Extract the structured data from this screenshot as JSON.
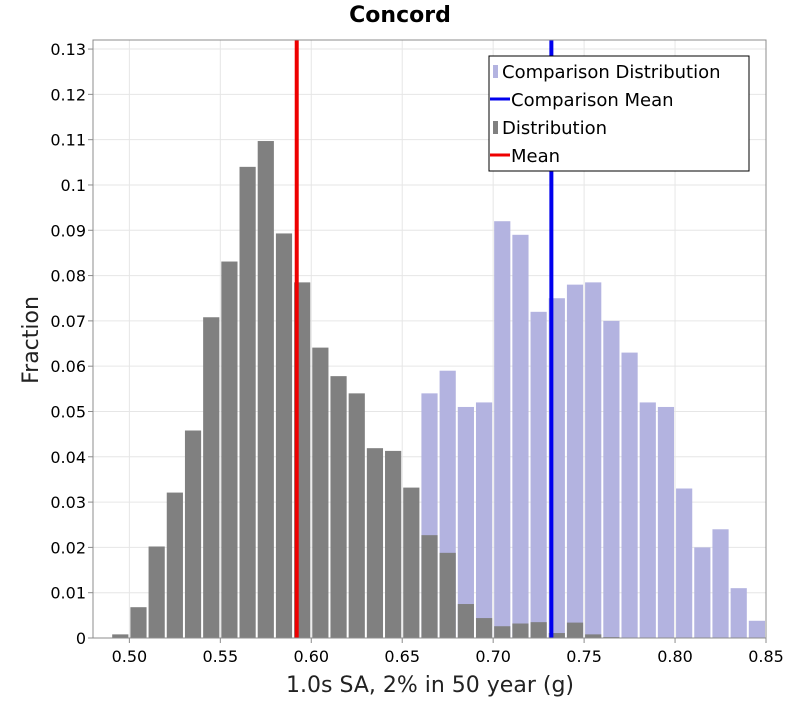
{
  "chart_data": {
    "type": "bar",
    "title": "Concord",
    "xlabel": "1.0s SA, 2% in 50 year (g)",
    "ylabel": "Fraction",
    "xlim": [
      0.48,
      0.85
    ],
    "ylim": [
      0,
      0.132
    ],
    "x_ticks": [
      "0.50",
      "0.55",
      "0.60",
      "0.65",
      "0.70",
      "0.75",
      "0.80",
      "0.85"
    ],
    "x_tick_values": [
      0.5,
      0.55,
      0.6,
      0.65,
      0.7,
      0.75,
      0.8,
      0.85
    ],
    "y_ticks": [
      "0",
      "0.01",
      "0.02",
      "0.03",
      "0.04",
      "0.05",
      "0.06",
      "0.07",
      "0.08",
      "0.09",
      "0.1",
      "0.11",
      "0.12",
      "0.13"
    ],
    "y_tick_values": [
      0,
      0.01,
      0.02,
      0.03,
      0.04,
      0.05,
      0.06,
      0.07,
      0.08,
      0.09,
      0.1,
      0.11,
      0.12,
      0.13
    ],
    "grid": true,
    "legend_position": "top-right",
    "bin_width": 0.01,
    "series": [
      {
        "name": "Comparison Distribution",
        "kind": "histogram",
        "color": "#b3b3e0",
        "x": [
          0.665,
          0.675,
          0.685,
          0.695,
          0.705,
          0.715,
          0.725,
          0.735,
          0.745,
          0.755,
          0.765,
          0.775,
          0.785,
          0.795,
          0.805,
          0.815,
          0.825,
          0.835,
          0.845
        ],
        "values": [
          0.054,
          0.059,
          0.051,
          0.052,
          0.092,
          0.089,
          0.072,
          0.075,
          0.078,
          0.0785,
          0.07,
          0.063,
          0.052,
          0.051,
          0.033,
          0.02,
          0.024,
          0.011,
          0.0038
        ]
      },
      {
        "name": "Distribution",
        "kind": "histogram",
        "color": "#808080",
        "x": [
          0.495,
          0.505,
          0.515,
          0.525,
          0.535,
          0.545,
          0.555,
          0.565,
          0.575,
          0.585,
          0.595,
          0.605,
          0.615,
          0.625,
          0.635,
          0.645,
          0.655,
          0.665,
          0.675,
          0.685,
          0.695,
          0.705,
          0.715,
          0.725,
          0.735,
          0.745,
          0.755,
          0.765,
          0.775
        ],
        "values": [
          0.0008,
          0.0068,
          0.0202,
          0.0321,
          0.0458,
          0.0708,
          0.0831,
          0.104,
          0.1097,
          0.0893,
          0.0785,
          0.0641,
          0.0578,
          0.054,
          0.0419,
          0.0413,
          0.0332,
          0.0227,
          0.0188,
          0.0075,
          0.0044,
          0.0026,
          0.0032,
          0.0035,
          0.0011,
          0.0034,
          0.0008,
          0.0002,
          0.0001
        ]
      },
      {
        "name": "Comparison Mean",
        "kind": "vline",
        "color": "#0000ee",
        "x": 0.732
      },
      {
        "name": "Mean",
        "kind": "vline",
        "color": "#ee0000",
        "x": 0.592
      }
    ],
    "legend": [
      {
        "label": "Comparison Distribution",
        "symbol": "bar",
        "color": "#b3b3e0"
      },
      {
        "label": "Comparison Mean",
        "symbol": "line",
        "color": "#0000ee"
      },
      {
        "label": "Distribution",
        "symbol": "bar",
        "color": "#808080"
      },
      {
        "label": "Mean",
        "symbol": "line",
        "color": "#ee0000"
      }
    ]
  }
}
